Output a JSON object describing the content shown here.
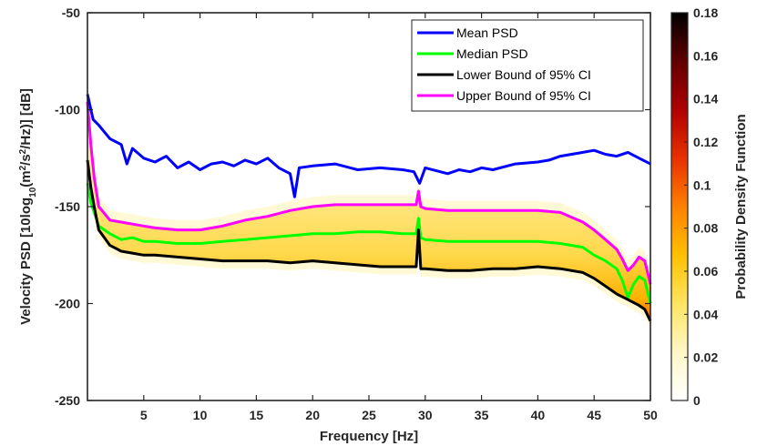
{
  "chart_data": {
    "type": "line",
    "xlabel": "Frequency [Hz]",
    "ylabel_parts": {
      "pre": "Velocity PSD [10log",
      "sub1": "10",
      "mid1": "(m",
      "sup1": "2",
      "mid2": "/s",
      "sup2": "2",
      "post": "/Hz)] [dB]"
    },
    "xlim": [
      0,
      50
    ],
    "ylim": [
      -250,
      -50
    ],
    "x_ticks": [
      5,
      10,
      15,
      20,
      25,
      30,
      35,
      40,
      45,
      50
    ],
    "y_ticks": [
      -250,
      -200,
      -150,
      -100,
      -50
    ],
    "grid": false,
    "legend_position": "top-right",
    "colorbar": {
      "label": "Probability Density Function",
      "ticks": [
        0,
        0.02,
        0.04,
        0.06,
        0.08,
        0.1,
        0.12,
        0.14,
        0.16,
        0.18
      ],
      "range": [
        0,
        0.18
      ],
      "colormap": [
        "#ffffff",
        "#fff7c8",
        "#ffe560",
        "#ffc000",
        "#ff8000",
        "#e83000",
        "#b00000",
        "#600000",
        "#000000"
      ]
    },
    "series": [
      {
        "name": "Mean PSD",
        "color": "#0000ff",
        "x": [
          0,
          0.5,
          1,
          2,
          3,
          3.5,
          4,
          5,
          6,
          7,
          8,
          9,
          10,
          11,
          12,
          13,
          14,
          15,
          16,
          17,
          18,
          18.4,
          18.8,
          20,
          22,
          24,
          26,
          28,
          29,
          29.5,
          30,
          32,
          33,
          34,
          35,
          36,
          38,
          40,
          41,
          42,
          43,
          44,
          45,
          46,
          47,
          48,
          49,
          50
        ],
        "y": [
          -92,
          -105,
          -108,
          -115,
          -118,
          -128,
          -120,
          -125,
          -127,
          -124,
          -130,
          -127,
          -131,
          -128,
          -127,
          -129,
          -126,
          -128,
          -125,
          -130,
          -133,
          -145,
          -130,
          -129,
          -128,
          -131,
          -130,
          -131,
          -132,
          -138,
          -130,
          -133,
          -131,
          -132,
          -130,
          -131,
          -128,
          -127,
          -126,
          -124,
          -123,
          -122,
          -121,
          -123,
          -124,
          -122,
          -125,
          -128
        ]
      },
      {
        "name": "Median PSD",
        "color": "#00ff00",
        "x": [
          0,
          0.3,
          0.6,
          1,
          2,
          3,
          4,
          5,
          6,
          8,
          10,
          12,
          14,
          16,
          18,
          20,
          22,
          24,
          26,
          28,
          29.2,
          29.4,
          29.6,
          30,
          32,
          34,
          36,
          38,
          40,
          42,
          44,
          45,
          46,
          47,
          47.5,
          48,
          48.5,
          49,
          49.5,
          50
        ],
        "y": [
          -138,
          -148,
          -153,
          -160,
          -164,
          -167,
          -166,
          -168,
          -168,
          -169,
          -169,
          -168,
          -167,
          -166,
          -165,
          -164,
          -164,
          -163,
          -163,
          -164,
          -164,
          -156,
          -166,
          -167,
          -168,
          -168,
          -168,
          -168,
          -168,
          -169,
          -171,
          -175,
          -178,
          -182,
          -188,
          -197,
          -190,
          -186,
          -188,
          -200
        ]
      },
      {
        "name": "Lower Bound of 95% CI",
        "color": "#000000",
        "x": [
          0,
          0.3,
          0.6,
          1,
          2,
          3,
          4,
          5,
          6,
          8,
          10,
          12,
          14,
          16,
          18,
          20,
          22,
          24,
          26,
          28,
          29.2,
          29.4,
          29.6,
          30,
          32,
          34,
          36,
          38,
          40,
          42,
          44,
          45,
          46,
          47,
          48,
          49,
          49.5,
          50
        ],
        "y": [
          -126,
          -140,
          -150,
          -162,
          -170,
          -173,
          -174,
          -175,
          -175,
          -176,
          -177,
          -178,
          -178,
          -178,
          -179,
          -178,
          -179,
          -180,
          -181,
          -181,
          -181,
          -162,
          -182,
          -182,
          -183,
          -183,
          -182,
          -182,
          -181,
          -182,
          -184,
          -187,
          -191,
          -195,
          -198,
          -201,
          -203,
          -209
        ]
      },
      {
        "name": "Upper Bound of 95% CI",
        "color": "#ff00ff",
        "x": [
          0,
          0.3,
          0.6,
          1,
          2,
          3,
          4,
          5,
          6,
          8,
          10,
          12,
          14,
          16,
          18,
          20,
          22,
          24,
          26,
          28,
          29.2,
          29.4,
          29.6,
          30,
          32,
          34,
          36,
          38,
          40,
          42,
          44,
          45,
          46,
          47,
          47.5,
          48,
          48.5,
          49,
          49.5,
          50
        ],
        "y": [
          -96,
          -118,
          -135,
          -150,
          -157,
          -158,
          -159,
          -160,
          -161,
          -162,
          -162,
          -160,
          -157,
          -155,
          -152,
          -150,
          -149,
          -149,
          -149,
          -149,
          -149,
          -142,
          -150,
          -151,
          -152,
          -152,
          -152,
          -152,
          -152,
          -153,
          -158,
          -162,
          -167,
          -172,
          -177,
          -183,
          -180,
          -176,
          -178,
          -190
        ]
      }
    ]
  }
}
